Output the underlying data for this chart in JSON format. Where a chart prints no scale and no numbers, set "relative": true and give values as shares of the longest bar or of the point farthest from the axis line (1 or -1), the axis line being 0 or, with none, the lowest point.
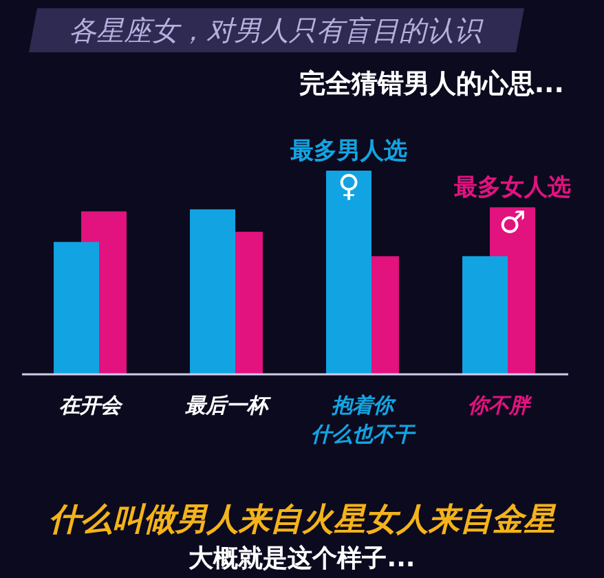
{
  "chart_data": {
    "type": "bar",
    "title": "各星座女，对男人只有盲目的认识",
    "subtitle": "完全猜错男人的心思...",
    "categories": [
      "在开会",
      "最后一杯",
      "抱着你什么也不干",
      "你不胖"
    ],
    "series": [
      {
        "color": "#12a4e2",
        "values": [
          0.65,
          0.81,
          1.0,
          0.58
        ]
      },
      {
        "color": "#e2127f",
        "values": [
          0.8,
          0.7,
          0.58,
          0.82
        ]
      }
    ],
    "relative": true,
    "annotations": [
      {
        "text": "最多男人选",
        "x": "抱着你什么也不干",
        "y": 1.0
      },
      {
        "text": "♀",
        "x": "抱着你什么也不干",
        "y": 1.0
      },
      {
        "text": "最多女人选",
        "x": "你不胖",
        "y": 0.82
      },
      {
        "text": "♂",
        "x": "你不胖",
        "y": 0.82
      },
      "什么叫做男人来自火星女人来自金星",
      "大概就是这个样子..."
    ]
  }
}
